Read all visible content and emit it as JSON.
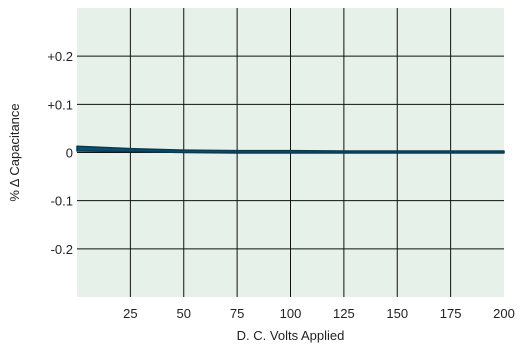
{
  "chart_data": {
    "type": "line",
    "title": "",
    "xlabel": "D. C. Volts Applied",
    "ylabel": "% Δ Capacitance",
    "xlim": [
      0,
      200
    ],
    "ylim": [
      -0.3,
      0.3
    ],
    "x_ticks": [
      25,
      50,
      75,
      100,
      125,
      150,
      175,
      200
    ],
    "x_tick_labels": [
      "25",
      "50",
      "75",
      "100",
      "125",
      "150",
      "175",
      "200"
    ],
    "y_ticks": [
      0.2,
      0.1,
      0,
      -0.1,
      -0.2
    ],
    "y_tick_labels": [
      "+0.2",
      "+0.1",
      "0",
      "-0.1",
      "-0.2"
    ],
    "grid": true,
    "series": [
      {
        "x": [
          0,
          25,
          50,
          75,
          100,
          125,
          150,
          175,
          200
        ],
        "upper": [
          0.013,
          0.008,
          0.005,
          0.004,
          0.004,
          0.003,
          0.003,
          0.003,
          0.003
        ],
        "lower": [
          0.003,
          0.002,
          0.0,
          -0.001,
          -0.001,
          -0.001,
          -0.001,
          -0.001,
          -0.001
        ]
      }
    ],
    "colors": {
      "plot_background": "#e6f1ea",
      "grid": "#111111",
      "band_fill": "#0d4f6e",
      "band_edge": "#083a52"
    }
  }
}
